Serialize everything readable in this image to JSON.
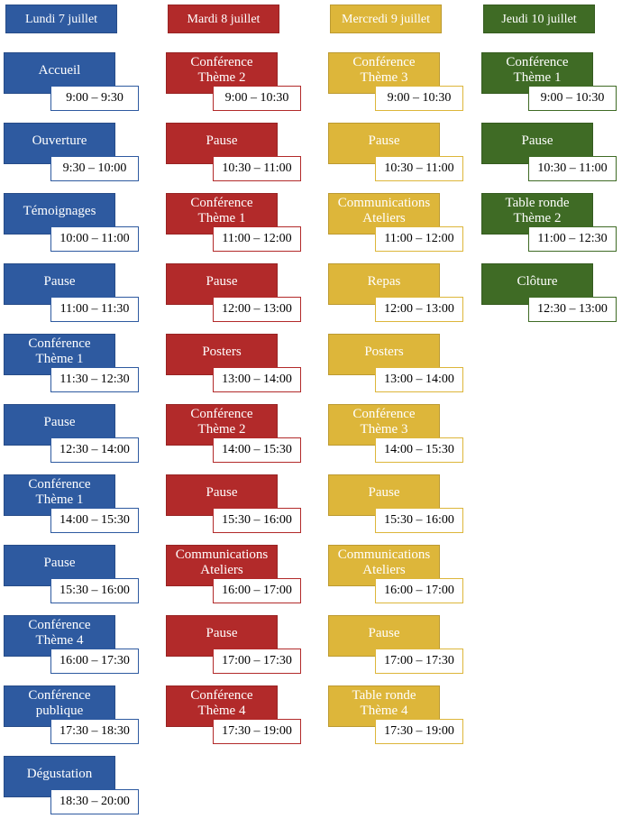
{
  "colors": {
    "lundi": "#2e5aa0",
    "mardi": "#b22a2a",
    "mercredi": "#ddb63a",
    "jeudi": "#3f6b25"
  },
  "days": [
    {
      "key": "lundi",
      "label": "Lundi 7 juillet",
      "events": [
        {
          "title": [
            "Accueil"
          ],
          "time": "9:00 – 9:30"
        },
        {
          "title": [
            "Ouverture"
          ],
          "time": "9:30 – 10:00"
        },
        {
          "title": [
            "Témoignages"
          ],
          "time": "10:00 – 11:00"
        },
        {
          "title": [
            "Pause"
          ],
          "time": "11:00 – 11:30"
        },
        {
          "title": [
            "Conférence",
            "Thème 1"
          ],
          "time": "11:30 – 12:30"
        },
        {
          "title": [
            "Pause"
          ],
          "time": "12:30 – 14:00"
        },
        {
          "title": [
            "Conférence",
            "Thème 1"
          ],
          "time": "14:00 – 15:30"
        },
        {
          "title": [
            "Pause"
          ],
          "time": "15:30 – 16:00"
        },
        {
          "title": [
            "Conférence",
            "Thème 4"
          ],
          "time": "16:00 – 17:30"
        },
        {
          "title": [
            "Conférence",
            "publique"
          ],
          "time": "17:30 – 18:30"
        },
        {
          "title": [
            "Dégustation"
          ],
          "time": "18:30 – 20:00"
        }
      ]
    },
    {
      "key": "mardi",
      "label": "Mardi 8 juillet",
      "events": [
        {
          "title": [
            "Conférence",
            "Thème 2"
          ],
          "time": "9:00 – 10:30"
        },
        {
          "title": [
            "Pause"
          ],
          "time": "10:30 – 11:00"
        },
        {
          "title": [
            "Conférence",
            "Thème 1"
          ],
          "time": "11:00 – 12:00"
        },
        {
          "title": [
            "Pause"
          ],
          "time": "12:00 – 13:00"
        },
        {
          "title": [
            "Posters"
          ],
          "time": "13:00 – 14:00"
        },
        {
          "title": [
            "Conférence",
            "Thème 2"
          ],
          "time": "14:00 – 15:30"
        },
        {
          "title": [
            "Pause"
          ],
          "time": "15:30 – 16:00"
        },
        {
          "title": [
            "Communications",
            "Ateliers"
          ],
          "time": "16:00 – 17:00"
        },
        {
          "title": [
            "Pause"
          ],
          "time": "17:00 – 17:30"
        },
        {
          "title": [
            "Conférence",
            "Thème 4"
          ],
          "time": "17:30 – 19:00"
        }
      ]
    },
    {
      "key": "mercredi",
      "label": "Mercredi 9 juillet",
      "events": [
        {
          "title": [
            "Conférence",
            "Thème 3"
          ],
          "time": "9:00 – 10:30"
        },
        {
          "title": [
            "Pause"
          ],
          "time": "10:30 – 11:00"
        },
        {
          "title": [
            "Communications",
            "Ateliers"
          ],
          "time": "11:00 – 12:00"
        },
        {
          "title": [
            "Repas"
          ],
          "time": "12:00 – 13:00"
        },
        {
          "title": [
            "Posters"
          ],
          "time": "13:00 – 14:00"
        },
        {
          "title": [
            "Conférence",
            "Thème 3"
          ],
          "time": "14:00 – 15:30"
        },
        {
          "title": [
            "Pause"
          ],
          "time": "15:30 – 16:00"
        },
        {
          "title": [
            "Communications",
            "Ateliers"
          ],
          "time": "16:00 – 17:00"
        },
        {
          "title": [
            "Pause"
          ],
          "time": "17:00 – 17:30"
        },
        {
          "title": [
            "Table ronde",
            "Thème 4"
          ],
          "time": "17:30 – 19:00"
        }
      ]
    },
    {
      "key": "jeudi",
      "label": "Jeudi 10  juillet",
      "events": [
        {
          "title": [
            "Conférence",
            "Thème 1"
          ],
          "time": "9:00 – 10:30"
        },
        {
          "title": [
            "Pause"
          ],
          "time": "10:30 – 11:00"
        },
        {
          "title": [
            "Table ronde",
            "Thème 2"
          ],
          "time": "11:00 – 12:30"
        },
        {
          "title": [
            "Clôture"
          ],
          "time": "12:30 – 13:00"
        }
      ]
    }
  ]
}
